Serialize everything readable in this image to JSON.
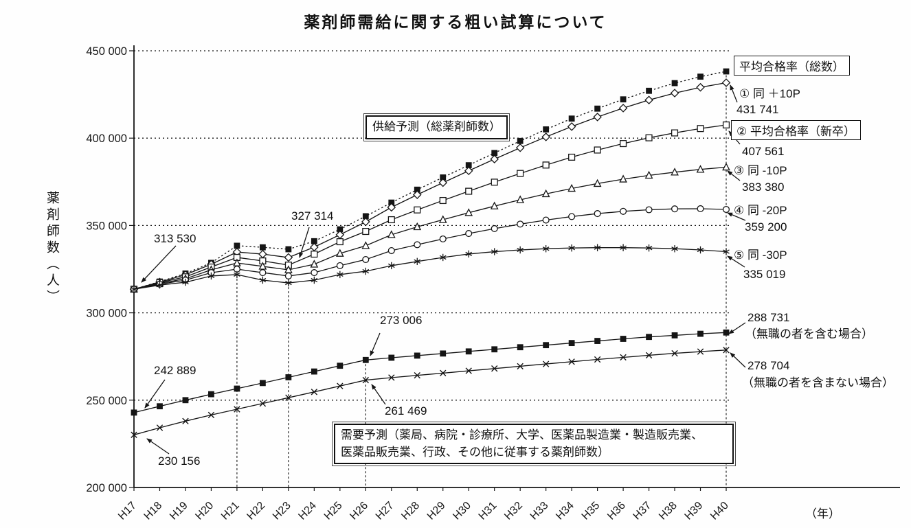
{
  "chart_data": {
    "type": "line",
    "title": "薬剤師需給に関する粗い試算について",
    "ylabel": "薬剤師数（人）",
    "xlabel_unit": "（年）",
    "ylim": [
      200000,
      450000
    ],
    "grid": "dotted-horizontal",
    "y_ticks": [
      {
        "value": 450000,
        "label": "450 000"
      },
      {
        "value": 400000,
        "label": "400 000"
      },
      {
        "value": 350000,
        "label": "350 000"
      },
      {
        "value": 300000,
        "label": "300 000"
      },
      {
        "value": 250000,
        "label": "250 000"
      },
      {
        "value": 200000,
        "label": "200 000"
      }
    ],
    "categories": [
      "H17",
      "H18",
      "H19",
      "H20",
      "H21",
      "H22",
      "H23",
      "H24",
      "H25",
      "H26",
      "H27",
      "H28",
      "H29",
      "H30",
      "H31",
      "H32",
      "H33",
      "H34",
      "H35",
      "H36",
      "H37",
      "H38",
      "H39",
      "H40"
    ],
    "series": [
      {
        "id": "supply_total",
        "name": "平均合格率（総数）",
        "marker": "filled-square",
        "line": "dotted",
        "values": [
          313530,
          317900,
          322500,
          328600,
          338400,
          337500,
          336400,
          341000,
          347800,
          355300,
          363100,
          370500,
          377500,
          384500,
          391500,
          398400,
          405000,
          411200,
          416900,
          422200,
          427100,
          431500,
          435200,
          438200
        ]
      },
      {
        "id": "supply_plus10",
        "name": "① 同 +10P",
        "end_label": "431 741",
        "marker": "diamond",
        "line": "solid",
        "values": [
          313530,
          317600,
          321800,
          327800,
          334800,
          333600,
          331700,
          337600,
          344700,
          352100,
          360400,
          367600,
          374500,
          381300,
          388000,
          394500,
          400700,
          406600,
          412100,
          417200,
          421800,
          425800,
          429100,
          431741
        ]
      },
      {
        "id": "supply_shinsotsu",
        "name": "② 平均合格率（新卒）",
        "end_label": "407 561",
        "marker": "open-square",
        "line": "solid",
        "values": [
          313530,
          317300,
          320600,
          326200,
          331700,
          329700,
          327314,
          333600,
          340700,
          346600,
          353300,
          358900,
          364300,
          369600,
          374800,
          379800,
          384600,
          389100,
          393200,
          396900,
          400200,
          403000,
          405500,
          407561
        ]
      },
      {
        "id": "supply_minus10",
        "name": "③ 同 -10P",
        "end_label": "383 380",
        "marker": "triangle",
        "line": "solid",
        "values": [
          313530,
          316900,
          319500,
          324600,
          328500,
          326600,
          324600,
          327800,
          334000,
          338400,
          344700,
          349200,
          353300,
          357300,
          361100,
          364700,
          368100,
          371200,
          374000,
          376500,
          378700,
          380500,
          382100,
          383380
        ]
      },
      {
        "id": "supply_minus20",
        "name": "④ 同 -20P",
        "end_label": "359 200",
        "marker": "circle",
        "line": "solid",
        "values": [
          313530,
          316400,
          318700,
          323000,
          325000,
          323000,
          321100,
          323000,
          327000,
          330500,
          335600,
          339000,
          342300,
          345400,
          348200,
          350800,
          353100,
          355100,
          356800,
          358100,
          359000,
          359500,
          359600,
          359200
        ]
      },
      {
        "id": "supply_minus30",
        "name": "⑤ 同 -30P",
        "end_label": "335 019",
        "marker": "asterisk",
        "line": "solid",
        "values": [
          313530,
          315900,
          317500,
          321100,
          321900,
          318700,
          317100,
          318700,
          321900,
          323800,
          327000,
          329400,
          331700,
          333700,
          335000,
          336000,
          336700,
          337100,
          337300,
          337300,
          337100,
          336700,
          336000,
          335019
        ]
      },
      {
        "id": "demand_incl",
        "name": "（無職の者を含む場合）",
        "end_label": "288 731",
        "marker": "filled-square",
        "line": "solid",
        "values": [
          242889,
          246500,
          250000,
          253400,
          256600,
          259800,
          263100,
          266400,
          269700,
          273006,
          274300,
          275500,
          276700,
          277900,
          279100,
          280300,
          281500,
          282700,
          283900,
          285100,
          286200,
          287100,
          288000,
          288731
        ]
      },
      {
        "id": "demand_excl",
        "name": "（無職の者を含まない場合）",
        "end_label": "278 704",
        "marker": "x",
        "line": "solid",
        "values": [
          230156,
          234200,
          238000,
          241500,
          244800,
          248100,
          251400,
          254700,
          258100,
          261469,
          262900,
          264200,
          265500,
          266800,
          268100,
          269400,
          270700,
          272000,
          273300,
          274500,
          275700,
          276800,
          277800,
          278704
        ]
      }
    ],
    "vertical_guides": [
      {
        "at": "H21",
        "from": 321900
      },
      {
        "at": "H23",
        "from": 317100
      },
      {
        "at": "H26",
        "from": 273006
      },
      {
        "at": "H40",
        "from": 436000
      }
    ],
    "legend": {
      "total_box": "平均合格率（総数）",
      "entries": [
        {
          "label": "① 同 ＋10P",
          "value": "431 741"
        },
        {
          "label": "② 平均合格率（新卒）",
          "value": "407 561",
          "boxed": true
        },
        {
          "label": "③ 同 -10P",
          "value": "383 380"
        },
        {
          "label": "④ 同 -20P",
          "value": "359 200"
        },
        {
          "label": "⑤ 同 -30P",
          "value": "335 019"
        }
      ]
    },
    "demand_labels": [
      {
        "value": "288 731",
        "caption": "（無職の者を含む場合）"
      },
      {
        "value": "278 704",
        "caption": "（無職の者を含まない場合）"
      }
    ],
    "annotations": {
      "supply_start": "313 530",
      "supply_dip": "327 314",
      "demand_incl_start": "242 889",
      "demand_excl_start": "230 156",
      "demand_incl_mid": "273 006",
      "demand_excl_mid": "261 469"
    },
    "boxes": {
      "supply": "供給予測（総薬剤師数）",
      "demand_line1": "需要予測（薬局、病院・診療所、大学、医薬品製造業・製造販売業、",
      "demand_line2": "医薬品販売業、行政、その他に従事する薬剤師数）"
    }
  }
}
